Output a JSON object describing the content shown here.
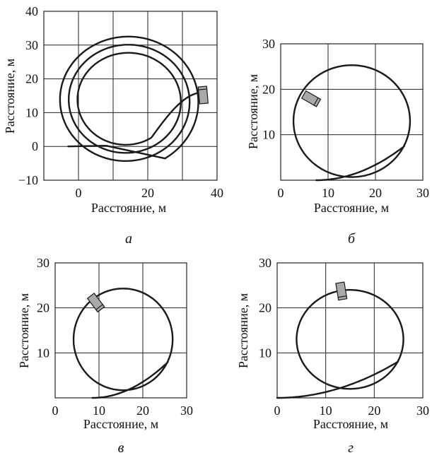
{
  "colors": {
    "line": "#1a1a1a",
    "grid": "#222222",
    "robot_fill": "#a9a9a9",
    "background": "#ffffff"
  },
  "chart_data": [
    {
      "type": "line",
      "panel_label": "а",
      "xlabel": "Расстояние, м",
      "ylabel": "Расстояние, м",
      "xlim": [
        -10,
        40
      ],
      "ylim": [
        -10,
        40
      ],
      "xticks": [
        "0",
        "20",
        "40"
      ],
      "yticks": [
        "−10",
        "0",
        "10",
        "20",
        "30",
        "40"
      ],
      "grid": true,
      "trajectory": {
        "description": "inward spiral",
        "start": [
          -3,
          0
        ],
        "center": [
          14,
          13.5
        ],
        "radii_approx": [
          20,
          17,
          13.5
        ],
        "end": [
          36,
          16
        ]
      },
      "robot_position": [
        36,
        15
      ]
    },
    {
      "type": "line",
      "panel_label": "б",
      "xlabel": "Расстояние, м",
      "ylabel": "Расстояние, м",
      "xlim": [
        0,
        30
      ],
      "ylim": [
        0,
        30
      ],
      "xticks": [
        "0",
        "10",
        "20",
        "30"
      ],
      "yticks": [
        "10",
        "20",
        "30"
      ],
      "grid": true,
      "trajectory": {
        "description": "entry curve then circle",
        "start": [
          7.5,
          0
        ],
        "center": [
          15,
          13
        ],
        "radius": 12.3
      },
      "robot_position": [
        6.3,
        18
      ]
    },
    {
      "type": "line",
      "panel_label": "в",
      "xlabel": "Расстояние, м",
      "ylabel": "Расстояние, м",
      "xlim": [
        0,
        30
      ],
      "ylim": [
        0,
        30
      ],
      "xticks": [
        "0",
        "10",
        "20",
        "30"
      ],
      "yticks": [
        "10",
        "20",
        "30"
      ],
      "grid": true,
      "trajectory": {
        "description": "entry curve then circle",
        "start": [
          8.5,
          0
        ],
        "center": [
          15.5,
          13
        ],
        "radius": 11.3
      },
      "robot_position": [
        9.2,
        21.3
      ]
    },
    {
      "type": "line",
      "panel_label": "г",
      "xlabel": "Расстояние, м",
      "ylabel": "Расстояние, м",
      "xlim": [
        0,
        30
      ],
      "ylim": [
        0,
        30
      ],
      "xticks": [
        "0",
        "10",
        "20",
        "30"
      ],
      "yticks": [
        "10",
        "20",
        "30"
      ],
      "grid": true,
      "trajectory": {
        "description": "entry curve then circle",
        "start": [
          0,
          0
        ],
        "center": [
          15,
          13
        ],
        "radius": 11
      },
      "robot_position": [
        13.2,
        23.9
      ]
    }
  ]
}
